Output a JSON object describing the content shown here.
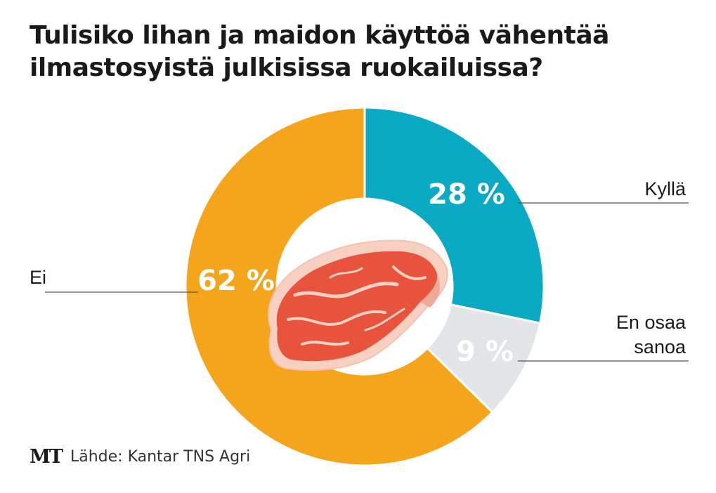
{
  "title_lines": [
    "Tulisiko lihan ja maidon käyttöä vähentää",
    "ilmastosyistä julkisissa ruokailuissa?"
  ],
  "chart_data": {
    "type": "pie",
    "title": "Tulisiko lihan ja maidon käyttöä vähentää ilmastosyistä julkisissa ruokailuissa?",
    "donut": true,
    "slices": [
      {
        "label": "Kyllä",
        "label_lines": [
          "Kyllä"
        ],
        "value": 28,
        "value_label": "28 %",
        "color": "#0aa9c4"
      },
      {
        "label": "En osaa sanoa",
        "label_lines": [
          "En osaa",
          "sanoa"
        ],
        "value": 9,
        "value_label": "9 %",
        "color": "#e1e5e7"
      },
      {
        "label": "Ei",
        "label_lines": [
          "Ei"
        ],
        "value": 62,
        "value_label": "62 %",
        "color": "#f5a51c"
      }
    ],
    "center_icon": "meat-steak-icon"
  },
  "footer": {
    "logo": "MT",
    "source": "Lähde: Kantar TNS Agri"
  }
}
